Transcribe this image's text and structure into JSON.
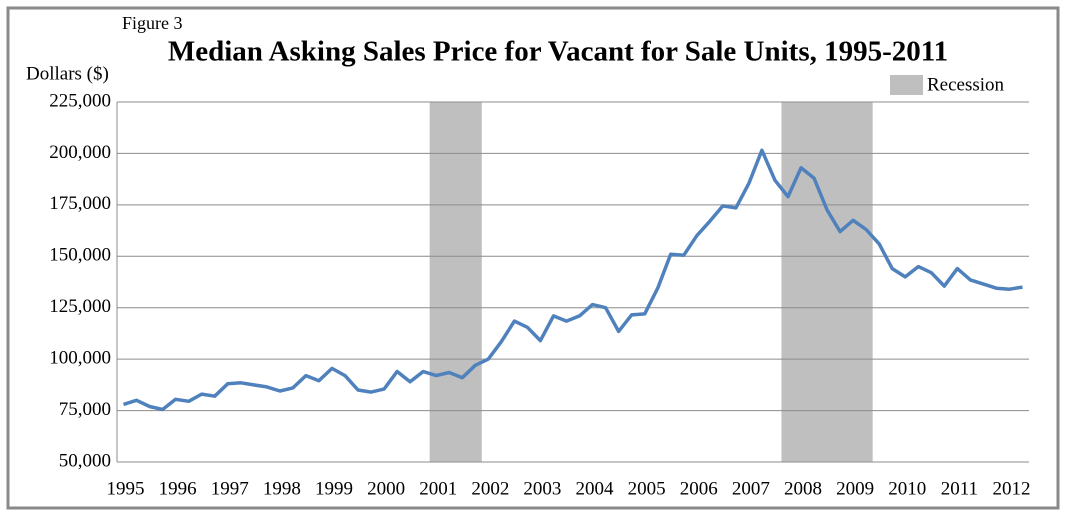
{
  "chart_data": {
    "type": "line",
    "figure_label": "Figure 3",
    "title": "Median Asking Sales Price for Vacant for Sale Units, 1995-2011",
    "y_label": "Dollars ($)",
    "categories": [
      "1995",
      null,
      null,
      null,
      "1996",
      null,
      null,
      null,
      "1997",
      null,
      null,
      null,
      "1998",
      null,
      null,
      null,
      "1999",
      null,
      null,
      null,
      "2000",
      null,
      null,
      null,
      "2001",
      null,
      null,
      null,
      "2002",
      null,
      null,
      null,
      "2003",
      null,
      null,
      null,
      "2004",
      null,
      null,
      null,
      "2005",
      null,
      null,
      null,
      "2006",
      null,
      null,
      null,
      "2007",
      null,
      null,
      null,
      "2008",
      null,
      null,
      null,
      "2009",
      null,
      null,
      null,
      "2010",
      null,
      null,
      null,
      "2011",
      null,
      null,
      null,
      "2012",
      null
    ],
    "series": [
      {
        "name": "Median asking sales price",
        "color": "#4f81bd",
        "values": [
          78000,
          80000,
          77000,
          75500,
          80500,
          79500,
          83000,
          82000,
          88000,
          88500,
          87500,
          86500,
          84500,
          86000,
          92000,
          89500,
          95500,
          92000,
          85000,
          84000,
          85500,
          94000,
          89000,
          94000,
          92000,
          93500,
          91000,
          97000,
          100000,
          108500,
          118500,
          115500,
          109000,
          121000,
          118500,
          121000,
          126500,
          125000,
          113500,
          121500,
          122000,
          134500,
          151000,
          150500,
          160000,
          167000,
          174500,
          173500,
          185500,
          201500,
          187000,
          179000,
          193000,
          188000,
          172500,
          162000,
          167500,
          163000,
          156000,
          144000,
          140000,
          145000,
          142000,
          135500,
          144000,
          138500,
          136500,
          134500,
          134000,
          135000
        ]
      }
    ],
    "recession": {
      "label": "Recession",
      "color": "#bfbfbf",
      "spans": [
        [
          24,
          28
        ],
        [
          51,
          58
        ]
      ]
    },
    "ylim": [
      50000,
      225000
    ],
    "yticks": [
      {
        "value": 50000,
        "label": "50,000"
      },
      {
        "value": 75000,
        "label": "75,000"
      },
      {
        "value": 100000,
        "label": "100,000"
      },
      {
        "value": 125000,
        "label": "125,000"
      },
      {
        "value": 150000,
        "label": "150,000"
      },
      {
        "value": 175000,
        "label": "175,000"
      },
      {
        "value": 200000,
        "label": "200,000"
      },
      {
        "value": 225000,
        "label": "225,000"
      }
    ],
    "grid": true
  }
}
